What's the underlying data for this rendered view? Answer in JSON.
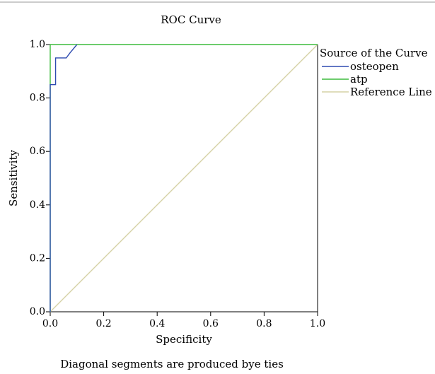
{
  "chart_data": {
    "type": "line",
    "title": "ROC Curve",
    "xlabel": "Specificity",
    "ylabel": "Sensitivity",
    "xlim": [
      0.0,
      1.0
    ],
    "ylim": [
      0.0,
      1.0
    ],
    "x_ticks": [
      "0.0",
      "0.2",
      "0.4",
      "0.6",
      "0.8",
      "1.0"
    ],
    "y_ticks": [
      "0.0",
      "0.2",
      "0.4",
      "0.6",
      "0.8",
      "1.0"
    ],
    "grid": false,
    "legend_title": "Source of the Curve",
    "legend_position": "right",
    "series": [
      {
        "name": "osteopen",
        "color": "#2e4bb0",
        "x": [
          0.0,
          0.0,
          0.0,
          0.02,
          0.02,
          0.06,
          0.075,
          0.1
        ],
        "y": [
          0.0,
          0.85,
          0.85,
          0.85,
          0.95,
          0.95,
          0.97,
          1.0
        ]
      },
      {
        "name": "atp",
        "color": "#3dbb3d",
        "x": [
          0.0,
          0.0,
          1.0
        ],
        "y": [
          0.0,
          1.0,
          1.0
        ]
      },
      {
        "name": "Reference Line",
        "color": "#d6d2a6",
        "x": [
          0.0,
          1.0
        ],
        "y": [
          0.0,
          1.0
        ]
      }
    ],
    "footnote": "Diagonal segments are produced bye ties"
  }
}
